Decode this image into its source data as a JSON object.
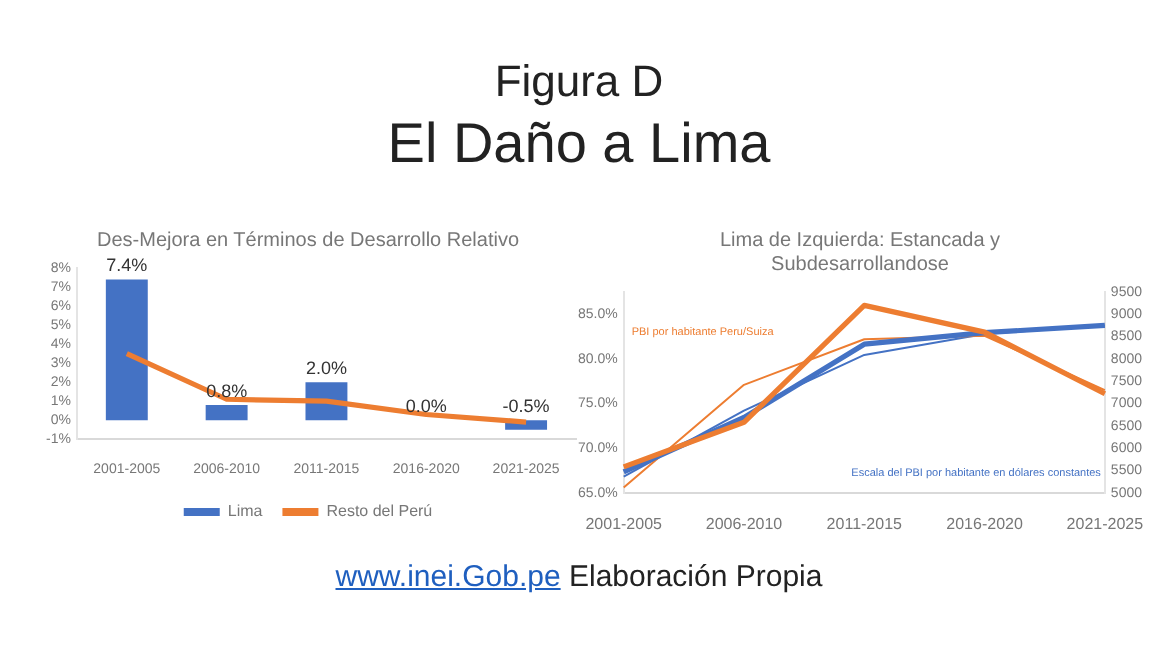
{
  "chart_data": [
    {
      "type": "other",
      "title": "Figura D",
      "subtitle": "El Daño a Lima",
      "annotations": [
        "www.inei.Gob.pe",
        "Elaboración Propia"
      ]
    },
    {
      "type": "bar",
      "title": "Des-Mejora en Términos de Desarrollo  Relativo",
      "categories": [
        "2001-2005",
        "2006-2010",
        "2011-2015",
        "2016-2020",
        "2021-2025"
      ],
      "series": [
        {
          "name": "Lima",
          "type": "bar",
          "color": "#4472c4",
          "values": [
            7.4,
            0.8,
            2.0,
            0.0,
            -0.5
          ],
          "value_labels": [
            "7.4%",
            "0.8%",
            "2.0%",
            "0.0%",
            "-0.5%"
          ]
        },
        {
          "name": "Resto del Perú",
          "type": "line",
          "color": "#ed7d31",
          "values": [
            3.5,
            1.1,
            1.0,
            0.3,
            -0.1
          ]
        }
      ],
      "ylim": [
        -1,
        8
      ],
      "yticks": [
        {
          "value": -1,
          "label": "-1%"
        },
        {
          "value": 0,
          "label": "0%"
        },
        {
          "value": 1,
          "label": "1%"
        },
        {
          "value": 2,
          "label": "2%"
        },
        {
          "value": 3,
          "label": "3%"
        },
        {
          "value": 4,
          "label": "4%"
        },
        {
          "value": 5,
          "label": "5%"
        },
        {
          "value": 6,
          "label": "6%"
        },
        {
          "value": 7,
          "label": "7%"
        },
        {
          "value": 8,
          "label": "8%"
        }
      ],
      "grid": false,
      "legend": "bottom",
      "marker": "none"
    },
    {
      "type": "line",
      "title": "Lima de Izquierda: Estancada y Subdesarrollandose",
      "categories": [
        "2001-2005",
        "2006-2010",
        "2011-2015",
        "2016-2020",
        "2021-2025"
      ],
      "series": [
        {
          "name": "PBI por habitante Peru/Suiza",
          "color": "#ed7d31",
          "values": [
            67.9,
            72.9,
            86.0,
            83.0,
            76.1
          ]
        },
        {
          "name": "Escala del PBI por habitante en dólares constantes",
          "color": "#4472c4",
          "axis": "y2",
          "values": [
            5470,
            6690,
            8330,
            8590,
            8750
          ]
        },
        {
          "type": "line",
          "color": "#ed7d31",
          "values": [
            65.6,
            77.1,
            82.2,
            82.6,
            76.5
          ]
        },
        {
          "type": "line",
          "color": "#4472c4",
          "axis": "y2",
          "values": [
            5360,
            6840,
            8090,
            8560,
            8750
          ]
        }
      ],
      "ylim": [
        65,
        87.5
      ],
      "yticks": [
        {
          "value": 65,
          "label": "65.0%"
        },
        {
          "value": 70,
          "label": "70.0%"
        },
        {
          "value": 75,
          "label": "75.0%"
        },
        {
          "value": 80,
          "label": "80.0%"
        },
        {
          "value": 85,
          "label": "85.0%"
        }
      ],
      "y2lim": [
        5000,
        9500
      ],
      "y2ticks": [
        5000,
        5500,
        6000,
        6500,
        7000,
        7500,
        8000,
        8500,
        9000,
        9500
      ],
      "grid": false,
      "legend": false,
      "marker": "none"
    }
  ]
}
